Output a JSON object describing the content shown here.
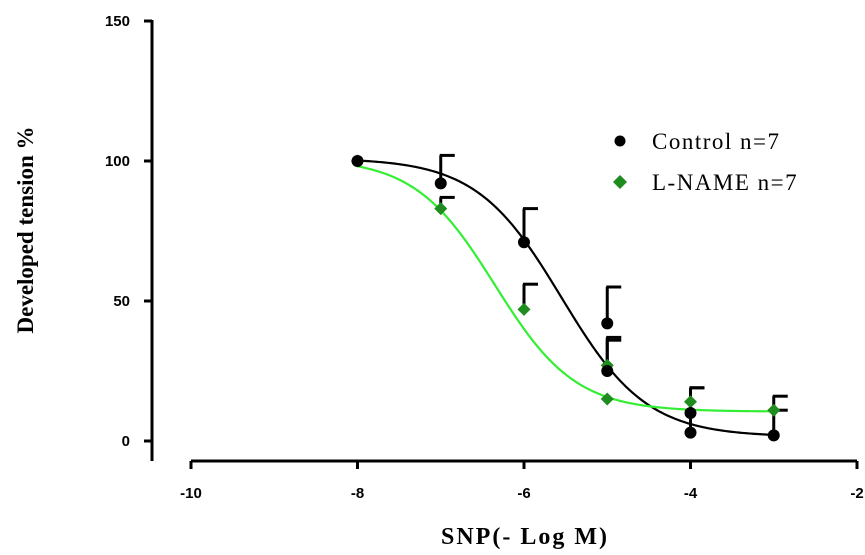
{
  "chart_data": {
    "type": "scatter",
    "title": "",
    "xlabel": "SNP(- Log M)",
    "ylabel": "Developed tension  %",
    "xlim": [
      -10,
      -2
    ],
    "ylim": [
      0,
      150
    ],
    "xticks": [
      -10,
      -8,
      -6,
      -4,
      -2
    ],
    "yticks": [
      0,
      50,
      100,
      150
    ],
    "xtick_labels": [
      "-10",
      "-8",
      "-6",
      "-4",
      "-2"
    ],
    "ytick_labels": [
      "0",
      "50",
      "100",
      "150"
    ],
    "legend_position": "top-right",
    "series": [
      {
        "name": "Control n=7",
        "marker": "circle",
        "color": "#000000",
        "points": [
          {
            "x": -8,
            "y": 100,
            "err": 0
          },
          {
            "x": -7,
            "y": 92,
            "err": 10
          },
          {
            "x": -6,
            "y": 71,
            "err": 12
          },
          {
            "x": -5,
            "y": 42,
            "err": 13
          },
          {
            "x": -5,
            "y": 25,
            "err": 12
          },
          {
            "x": -4,
            "y": 3,
            "err": 16
          },
          {
            "x": -4,
            "y": 10,
            "err": 9
          },
          {
            "x": -3,
            "y": 2,
            "err": 9
          }
        ],
        "fit": {
          "bottom": 1.5,
          "top": 101,
          "logEC50": -5.55,
          "hill": 0.85
        }
      },
      {
        "name": "L-NAME n=7",
        "marker": "diamond",
        "color": "#1e8c1e",
        "fit_color": "#33ee33",
        "points": [
          {
            "x": -8,
            "y": 100,
            "err": 0
          },
          {
            "x": -7,
            "y": 83,
            "err": 4
          },
          {
            "x": -6,
            "y": 47,
            "err": 9
          },
          {
            "x": -5,
            "y": 27,
            "err": 9
          },
          {
            "x": -5,
            "y": 15,
            "err": 0
          },
          {
            "x": -4,
            "y": 14,
            "err": 0
          },
          {
            "x": -3,
            "y": 11,
            "err": 5
          }
        ],
        "fit": {
          "bottom": 10.5,
          "top": 101,
          "logEC50": -6.35,
          "hill": 0.9
        }
      }
    ]
  }
}
